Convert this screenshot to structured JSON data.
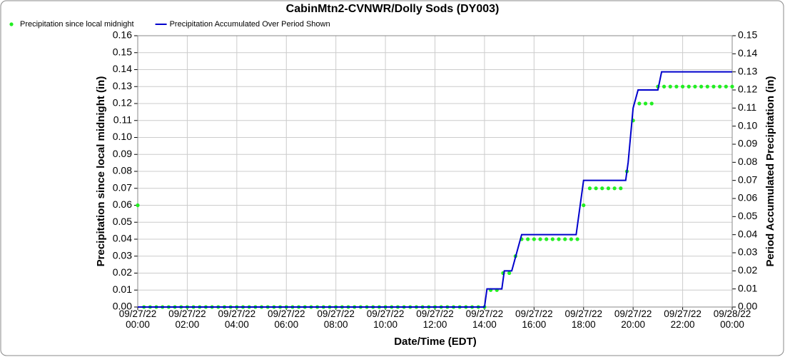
{
  "chart_data": {
    "type": "combo",
    "title": "CabinMtn2-CVNWR/Dolly Sods (DY003)",
    "x_label": "Date/Time (EDT)",
    "y_label": "Precipitation since local midnight (in)",
    "y2_label": "Period Accumulated Precipitation (in)",
    "grid": true,
    "legend": "top-left",
    "xlim": [
      0,
      24
    ],
    "xticks": [
      {
        "value": 0,
        "label": "09/27/22\n00:00"
      },
      {
        "value": 2,
        "label": "09/27/22\n02:00"
      },
      {
        "value": 4,
        "label": "09/27/22\n04:00"
      },
      {
        "value": 6,
        "label": "09/27/22\n06:00"
      },
      {
        "value": 8,
        "label": "09/27/22\n08:00"
      },
      {
        "value": 10,
        "label": "09/27/22\n10:00"
      },
      {
        "value": 12,
        "label": "09/27/22\n12:00"
      },
      {
        "value": 14,
        "label": "09/27/22\n14:00"
      },
      {
        "value": 16,
        "label": "09/27/22\n16:00"
      },
      {
        "value": 18,
        "label": "09/27/22\n18:00"
      },
      {
        "value": 20,
        "label": "09/27/22\n20:00"
      },
      {
        "value": 22,
        "label": "09/27/22\n22:00"
      },
      {
        "value": 24,
        "label": "09/28/22\n00:00"
      }
    ],
    "ylim": [
      0,
      0.16
    ],
    "yticks": [
      {
        "value": 0,
        "label": "0.00"
      },
      0.01,
      0.02,
      0.03,
      0.04,
      0.05,
      0.06,
      0.07,
      0.08,
      0.09,
      {
        "value": 0.1,
        "label": "0.10"
      },
      0.11,
      0.12,
      0.13,
      0.14,
      0.15,
      0.16
    ],
    "y2lim": [
      0,
      0.15
    ],
    "y2ticks": [
      {
        "value": 0,
        "label": "0.00"
      },
      0.01,
      0.02,
      0.03,
      0.04,
      0.05,
      0.06,
      0.07,
      0.08,
      0.09,
      {
        "value": 0.1,
        "label": "0.10"
      },
      0.11,
      0.12,
      0.13,
      0.14,
      0.15
    ],
    "series": [
      {
        "name": "Precipitation since local midnight",
        "type": "scatter",
        "color": "#22ee22",
        "x": [
          0,
          0.25,
          0.5,
          0.75,
          1,
          1.25,
          1.5,
          1.75,
          2,
          2.25,
          2.5,
          2.75,
          3,
          3.25,
          3.5,
          3.75,
          4,
          4.25,
          4.5,
          4.75,
          5,
          5.25,
          5.5,
          5.75,
          6,
          6.25,
          6.5,
          6.75,
          7,
          7.25,
          7.5,
          7.75,
          8,
          8.25,
          8.5,
          8.75,
          9,
          9.25,
          9.5,
          9.75,
          10,
          10.25,
          10.5,
          10.75,
          11,
          11.25,
          11.5,
          11.75,
          12,
          12.25,
          12.5,
          12.75,
          13,
          13.25,
          13.5,
          13.75,
          14,
          14.25,
          14.5,
          14.75,
          15,
          15.25,
          15.5,
          15.75,
          16,
          16.25,
          16.5,
          16.75,
          17,
          17.25,
          17.5,
          17.75,
          18,
          18.25,
          18.5,
          18.75,
          19,
          19.25,
          19.5,
          19.75,
          20,
          20.25,
          20.5,
          20.75,
          21,
          21.25,
          21.5,
          21.75,
          22,
          22.25,
          22.5,
          22.75,
          23,
          23.25,
          23.5,
          23.75,
          24
        ],
        "values": [
          0.06,
          0,
          0,
          0,
          0,
          0,
          0,
          0,
          0,
          0,
          0,
          0,
          0,
          0,
          0,
          0,
          0,
          0,
          0,
          0,
          0,
          0,
          0,
          0,
          0,
          0,
          0,
          0,
          0,
          0,
          0,
          0,
          0,
          0,
          0,
          0,
          0,
          0,
          0,
          0,
          0,
          0,
          0,
          0,
          0,
          0,
          0,
          0,
          0,
          0,
          0,
          0,
          0,
          0,
          0,
          0,
          0,
          0.01,
          0.01,
          0.02,
          0.02,
          0.03,
          0.04,
          0.04,
          0.04,
          0.04,
          0.04,
          0.04,
          0.04,
          0.04,
          0.04,
          0.04,
          0.06,
          0.07,
          0.07,
          0.07,
          0.07,
          0.07,
          0.07,
          0.08,
          0.11,
          0.12,
          0.12,
          0.12,
          0.13,
          0.13,
          0.13,
          0.13,
          0.13,
          0.13,
          0.13,
          0.13,
          0.13,
          0.13,
          0.13,
          0.13,
          0.13
        ]
      },
      {
        "name": "Precipitation Accumulated Over Period Shown",
        "type": "line",
        "axis": "y2",
        "color": "#0000cc",
        "x": [
          0,
          14,
          14.1,
          14.7,
          14.8,
          15.1,
          15.5,
          17.7,
          18,
          19.7,
          19.8,
          20,
          20.2,
          21,
          21.15,
          24
        ],
        "values": [
          0,
          0,
          0.01,
          0.01,
          0.02,
          0.02,
          0.04,
          0.04,
          0.07,
          0.07,
          0.08,
          0.11,
          0.12,
          0.12,
          0.13,
          0.13
        ]
      }
    ]
  }
}
